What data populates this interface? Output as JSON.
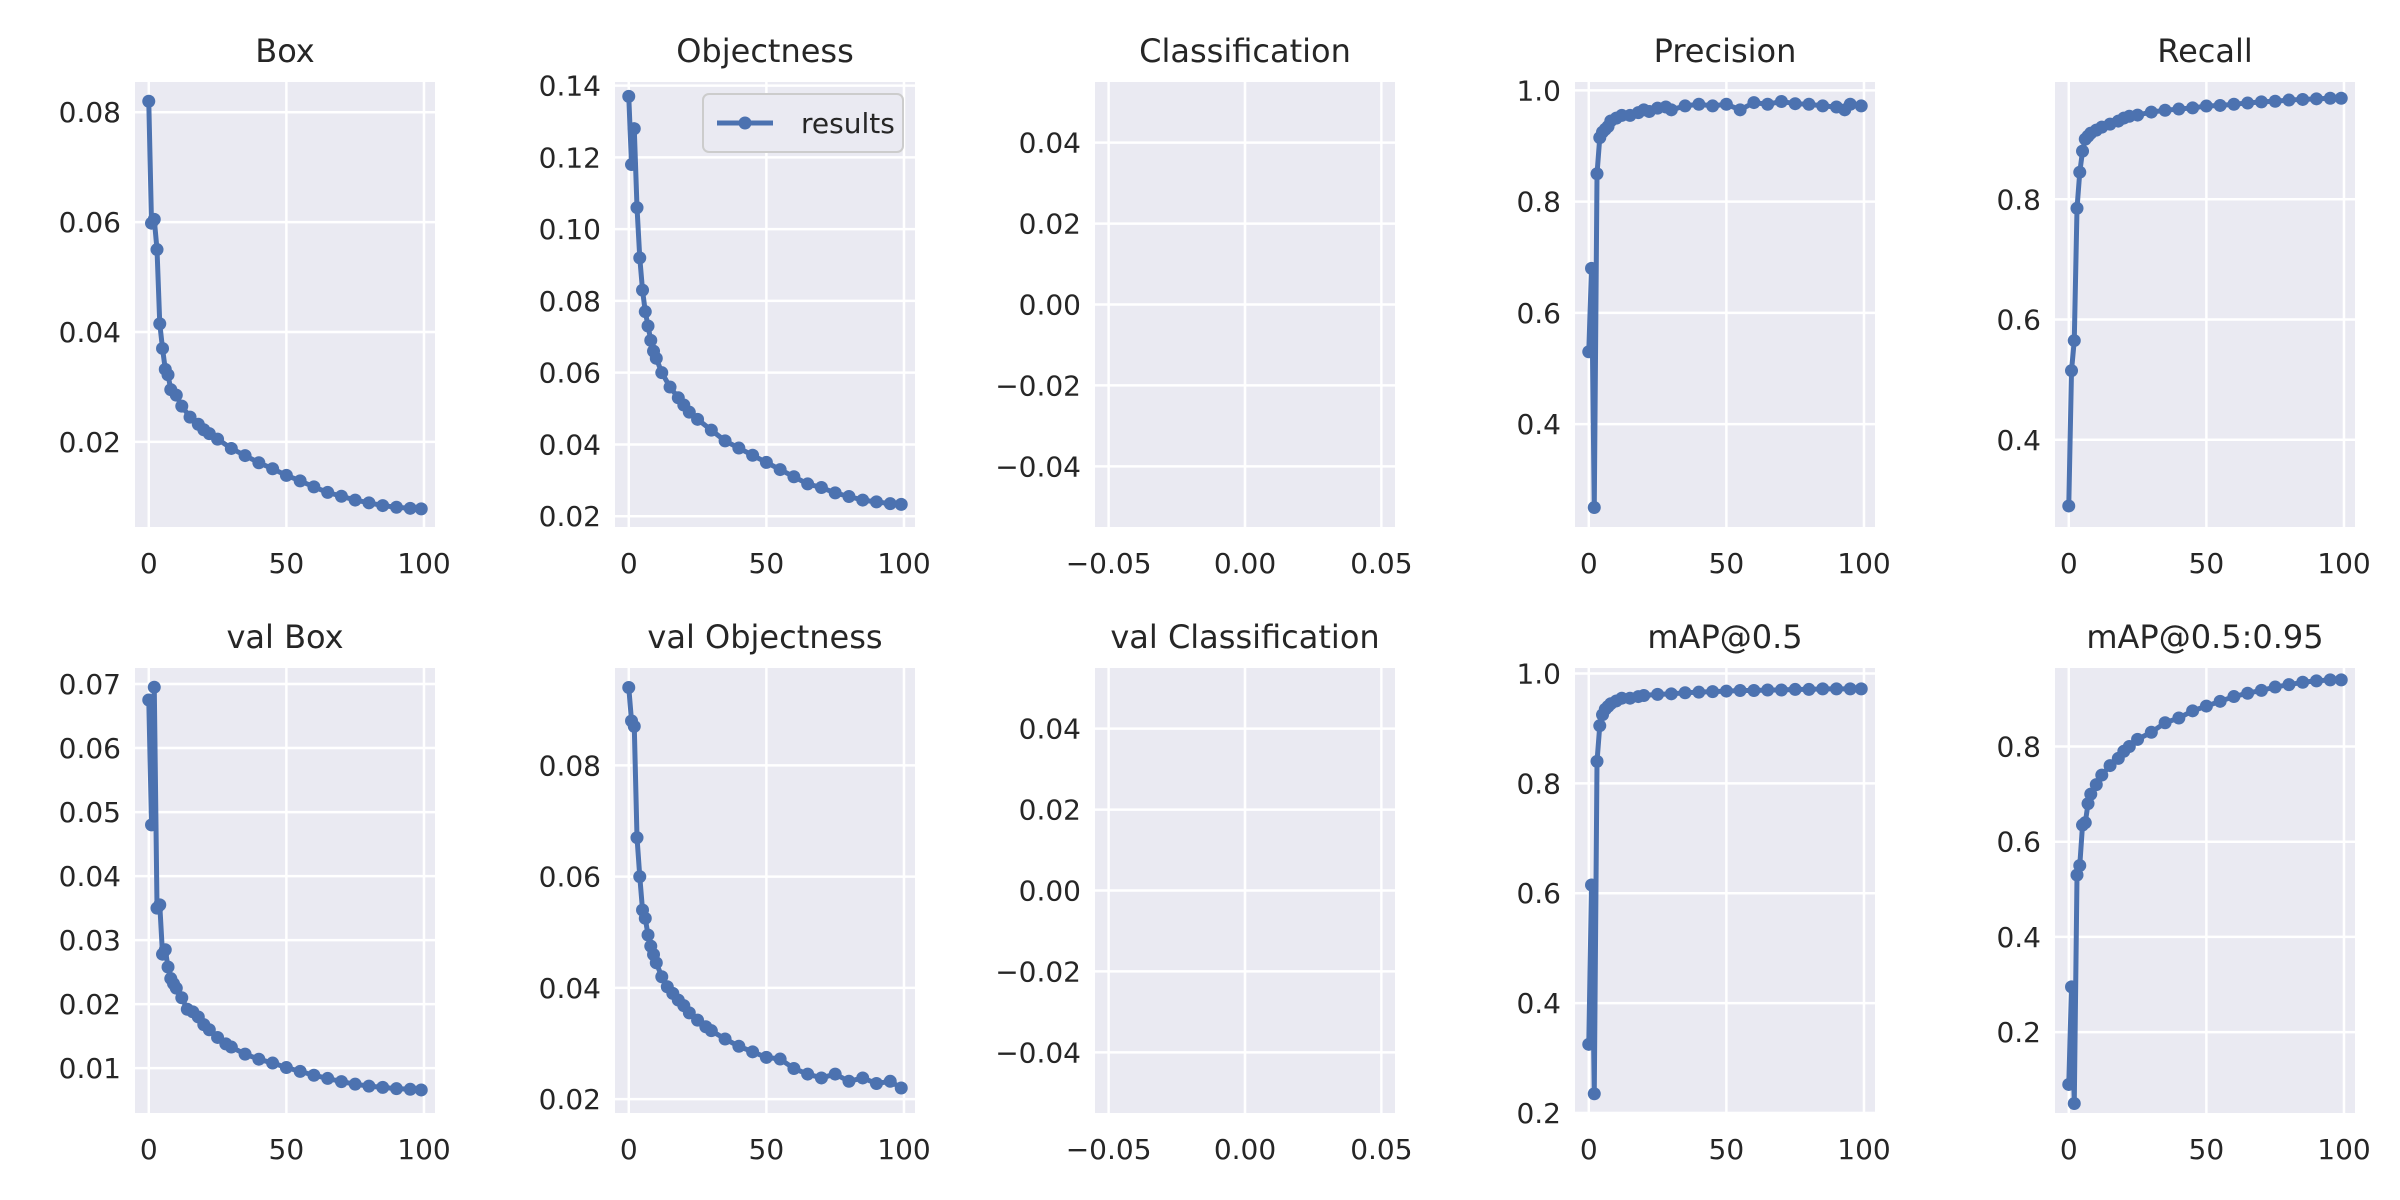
{
  "chart_data": [
    {
      "type": "line",
      "title": "Box",
      "xlim": [
        -5,
        104
      ],
      "ylim": [
        0.0045,
        0.0855
      ],
      "xticks": [
        0,
        50,
        100
      ],
      "yticks": [
        0.02,
        0.04,
        0.06,
        0.08
      ],
      "series": [
        {
          "x": [
            0,
            1,
            2,
            3,
            4,
            5,
            6,
            7,
            8,
            10,
            12,
            15,
            18,
            20,
            22,
            25,
            30,
            35,
            40,
            45,
            50,
            55,
            60,
            65,
            70,
            75,
            80,
            85,
            90,
            95,
            99
          ],
          "values": [
            0.082,
            0.0598,
            0.0605,
            0.055,
            0.0415,
            0.037,
            0.0332,
            0.0322,
            0.0295,
            0.0285,
            0.0265,
            0.0245,
            0.0232,
            0.0222,
            0.0215,
            0.0205,
            0.0188,
            0.0175,
            0.0162,
            0.0151,
            0.0139,
            0.0129,
            0.0118,
            0.0108,
            0.0101,
            0.0094,
            0.0089,
            0.0084,
            0.0081,
            0.0079,
            0.0078
          ]
        }
      ]
    },
    {
      "type": "line",
      "title": "Objectness",
      "xlim": [
        -5,
        104
      ],
      "ylim": [
        0.017,
        0.141
      ],
      "xticks": [
        0,
        50,
        100
      ],
      "yticks": [
        0.02,
        0.04,
        0.06,
        0.08,
        0.1,
        0.12,
        0.14
      ],
      "legend": {
        "label": "results",
        "position": "top-right"
      },
      "series": [
        {
          "name": "results",
          "x": [
            0,
            1,
            2,
            3,
            4,
            5,
            6,
            7,
            8,
            9,
            10,
            12,
            15,
            18,
            20,
            22,
            25,
            30,
            35,
            40,
            45,
            50,
            55,
            60,
            65,
            70,
            75,
            80,
            85,
            90,
            95,
            99
          ],
          "values": [
            0.137,
            0.118,
            0.128,
            0.106,
            0.092,
            0.083,
            0.077,
            0.073,
            0.069,
            0.066,
            0.064,
            0.06,
            0.056,
            0.053,
            0.051,
            0.049,
            0.047,
            0.044,
            0.041,
            0.039,
            0.037,
            0.035,
            0.033,
            0.031,
            0.029,
            0.028,
            0.0265,
            0.0255,
            0.0245,
            0.024,
            0.0235,
            0.0233
          ]
        }
      ]
    },
    {
      "type": "line",
      "title": "Classification",
      "xlim": [
        -0.055,
        0.055
      ],
      "ylim": [
        -0.055,
        0.055
      ],
      "xticks": [
        -0.05,
        0.0,
        0.05
      ],
      "xtick_labels": [
        "−0.05",
        "0.00",
        "0.05"
      ],
      "yticks": [
        -0.04,
        -0.02,
        0.0,
        0.02,
        0.04
      ],
      "ytick_labels": [
        "−0.04",
        "−0.02",
        "0.00",
        "0.02",
        "0.04"
      ],
      "series": [
        {
          "x": [],
          "values": []
        }
      ]
    },
    {
      "type": "line",
      "title": "Precision",
      "xlim": [
        -5,
        104
      ],
      "ylim": [
        0.215,
        1.015
      ],
      "xticks": [
        0,
        50,
        100
      ],
      "yticks": [
        0.4,
        0.6,
        0.8,
        1.0
      ],
      "series": [
        {
          "x": [
            0,
            1,
            2,
            3,
            4,
            5,
            6,
            7,
            8,
            10,
            12,
            15,
            18,
            20,
            22,
            25,
            28,
            30,
            35,
            40,
            45,
            50,
            55,
            60,
            65,
            70,
            75,
            80,
            85,
            90,
            93,
            95,
            99
          ],
          "values": [
            0.53,
            0.68,
            0.25,
            0.85,
            0.915,
            0.925,
            0.93,
            0.935,
            0.945,
            0.95,
            0.955,
            0.955,
            0.96,
            0.965,
            0.962,
            0.968,
            0.97,
            0.965,
            0.972,
            0.975,
            0.972,
            0.975,
            0.965,
            0.978,
            0.975,
            0.98,
            0.976,
            0.975,
            0.972,
            0.97,
            0.965,
            0.975,
            0.972
          ]
        }
      ]
    },
    {
      "type": "line",
      "title": "Recall",
      "xlim": [
        -5,
        104
      ],
      "ylim": [
        0.255,
        0.995
      ],
      "xticks": [
        0,
        50,
        100
      ],
      "yticks": [
        0.4,
        0.6,
        0.8
      ],
      "series": [
        {
          "x": [
            0,
            1,
            2,
            3,
            4,
            5,
            6,
            7,
            8,
            10,
            12,
            15,
            18,
            20,
            22,
            25,
            30,
            35,
            40,
            45,
            50,
            55,
            60,
            65,
            70,
            75,
            80,
            85,
            90,
            95,
            99
          ],
          "values": [
            0.29,
            0.515,
            0.565,
            0.785,
            0.845,
            0.88,
            0.9,
            0.905,
            0.91,
            0.915,
            0.92,
            0.925,
            0.93,
            0.935,
            0.938,
            0.94,
            0.945,
            0.948,
            0.95,
            0.952,
            0.955,
            0.956,
            0.958,
            0.96,
            0.962,
            0.963,
            0.965,
            0.966,
            0.967,
            0.968,
            0.968
          ]
        }
      ]
    },
    {
      "type": "line",
      "title": "val Box",
      "xlim": [
        -5,
        104
      ],
      "ylim": [
        0.003,
        0.0725
      ],
      "xticks": [
        0,
        50,
        100
      ],
      "yticks": [
        0.01,
        0.02,
        0.03,
        0.04,
        0.05,
        0.06,
        0.07
      ],
      "series": [
        {
          "x": [
            0,
            1,
            2,
            3,
            4,
            5,
            6,
            7,
            8,
            9,
            10,
            12,
            14,
            16,
            18,
            20,
            22,
            25,
            28,
            30,
            35,
            40,
            45,
            50,
            55,
            60,
            65,
            70,
            75,
            80,
            85,
            90,
            95,
            99
          ],
          "values": [
            0.0675,
            0.048,
            0.0695,
            0.035,
            0.0355,
            0.0278,
            0.0285,
            0.0258,
            0.024,
            0.0232,
            0.0225,
            0.021,
            0.0192,
            0.0188,
            0.018,
            0.0168,
            0.016,
            0.0148,
            0.0138,
            0.0133,
            0.0122,
            0.0114,
            0.0108,
            0.0101,
            0.0095,
            0.0089,
            0.0084,
            0.0079,
            0.0075,
            0.0072,
            0.007,
            0.0068,
            0.0067,
            0.0066
          ]
        }
      ]
    },
    {
      "type": "line",
      "title": "val Objectness",
      "xlim": [
        -5,
        104
      ],
      "ylim": [
        0.0175,
        0.0975
      ],
      "xticks": [
        0,
        50,
        100
      ],
      "yticks": [
        0.02,
        0.04,
        0.06,
        0.08
      ],
      "series": [
        {
          "x": [
            0,
            1,
            2,
            3,
            4,
            5,
            6,
            7,
            8,
            9,
            10,
            12,
            14,
            16,
            18,
            20,
            22,
            25,
            28,
            30,
            35,
            40,
            45,
            50,
            55,
            60,
            65,
            70,
            75,
            80,
            85,
            90,
            95,
            99
          ],
          "values": [
            0.094,
            0.088,
            0.087,
            0.067,
            0.06,
            0.054,
            0.0525,
            0.0495,
            0.0475,
            0.046,
            0.0445,
            0.042,
            0.0402,
            0.039,
            0.0378,
            0.0368,
            0.0355,
            0.0342,
            0.033,
            0.0323,
            0.0308,
            0.0295,
            0.0285,
            0.0275,
            0.0272,
            0.0255,
            0.0245,
            0.0238,
            0.0245,
            0.0232,
            0.0238,
            0.0228,
            0.0232,
            0.022
          ]
        }
      ]
    },
    {
      "type": "line",
      "title": "val Classification",
      "xlim": [
        -0.055,
        0.055
      ],
      "ylim": [
        -0.055,
        0.055
      ],
      "xticks": [
        -0.05,
        0.0,
        0.05
      ],
      "xtick_labels": [
        "−0.05",
        "0.00",
        "0.05"
      ],
      "yticks": [
        -0.04,
        -0.02,
        0.0,
        0.02,
        0.04
      ],
      "ytick_labels": [
        "−0.04",
        "−0.02",
        "0.00",
        "0.02",
        "0.04"
      ],
      "series": [
        {
          "x": [],
          "values": []
        }
      ]
    },
    {
      "type": "line",
      "title": "mAP@0.5",
      "xlim": [
        -5,
        104
      ],
      "ylim": [
        0.2,
        1.01
      ],
      "xticks": [
        0,
        50,
        100
      ],
      "yticks": [
        0.2,
        0.4,
        0.6,
        0.8,
        1.0
      ],
      "series": [
        {
          "x": [
            0,
            1,
            2,
            3,
            4,
            5,
            6,
            7,
            8,
            10,
            12,
            15,
            18,
            20,
            25,
            30,
            35,
            40,
            45,
            50,
            55,
            60,
            65,
            70,
            75,
            80,
            85,
            90,
            95,
            99
          ],
          "values": [
            0.325,
            0.615,
            0.235,
            0.84,
            0.905,
            0.925,
            0.935,
            0.94,
            0.945,
            0.95,
            0.955,
            0.955,
            0.958,
            0.96,
            0.962,
            0.963,
            0.965,
            0.966,
            0.967,
            0.968,
            0.969,
            0.969,
            0.97,
            0.97,
            0.971,
            0.971,
            0.972,
            0.972,
            0.972,
            0.972
          ]
        }
      ]
    },
    {
      "type": "line",
      "title": "mAP@0.5:0.95",
      "xlim": [
        -5,
        104
      ],
      "ylim": [
        0.03,
        0.965
      ],
      "xticks": [
        0,
        50,
        100
      ],
      "yticks": [
        0.2,
        0.4,
        0.6,
        0.8
      ],
      "series": [
        {
          "x": [
            0,
            1,
            2,
            3,
            4,
            5,
            6,
            7,
            8,
            10,
            12,
            15,
            18,
            20,
            22,
            25,
            30,
            35,
            40,
            45,
            50,
            55,
            60,
            65,
            70,
            75,
            80,
            85,
            90,
            95,
            99
          ],
          "values": [
            0.09,
            0.295,
            0.05,
            0.53,
            0.55,
            0.635,
            0.64,
            0.68,
            0.7,
            0.72,
            0.74,
            0.76,
            0.775,
            0.79,
            0.8,
            0.815,
            0.83,
            0.85,
            0.86,
            0.875,
            0.885,
            0.895,
            0.905,
            0.912,
            0.918,
            0.925,
            0.93,
            0.935,
            0.938,
            0.94,
            0.94
          ]
        }
      ]
    }
  ],
  "style": {
    "line_color": "#4c72b0",
    "plot_background": "#eaeaf2",
    "grid_color": "#ffffff",
    "text_color": "#262626"
  }
}
